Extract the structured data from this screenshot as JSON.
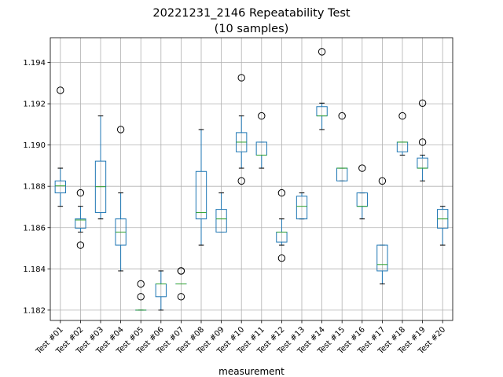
{
  "chart_data": {
    "type": "box",
    "title": [
      "20221231_2146 Repeatability Test",
      "(10 samples)"
    ],
    "xlabel": "measurement",
    "ylabel": "",
    "ylim": [
      1.1815,
      1.1952
    ],
    "yticks": [
      1.182,
      1.184,
      1.186,
      1.188,
      1.19,
      1.192,
      1.194
    ],
    "ytick_labels": [
      "1.182",
      "1.184",
      "1.186",
      "1.188",
      "1.190",
      "1.192",
      "1.194"
    ],
    "grid": true,
    "colors": {
      "box": "#1f77b4",
      "median": "#2ca02c",
      "grid": "#b0b0b0"
    },
    "categories": [
      "Test #01",
      "Test #02",
      "Test #03",
      "Test #04",
      "Test #05",
      "Test #06",
      "Test #07",
      "Test #08",
      "Test #09",
      "Test #10",
      "Test #11",
      "Test #12",
      "Test #13",
      "Test #14",
      "Test #15",
      "Test #16",
      "Test #17",
      "Test #18",
      "Test #19",
      "Test #20"
    ],
    "boxes": [
      {
        "whislo": 1.18703,
        "q1": 1.18768,
        "med": 1.18802,
        "q3": 1.18826,
        "whishi": 1.18888,
        "fliers": [
          1.19265
        ]
      },
      {
        "whislo": 1.18578,
        "q1": 1.18597,
        "med": 1.18637,
        "q3": 1.18642,
        "whishi": 1.18703,
        "fliers": [
          1.18768,
          1.18515
        ]
      },
      {
        "whislo": 1.18642,
        "q1": 1.18673,
        "med": 1.18798,
        "q3": 1.18922,
        "whishi": 1.19141,
        "fliers": []
      },
      {
        "whislo": 1.1839,
        "q1": 1.18515,
        "med": 1.18578,
        "q3": 1.18642,
        "whishi": 1.18768,
        "fliers": [
          1.19075
        ]
      },
      {
        "whislo": 1.182,
        "q1": 1.182,
        "med": 1.182,
        "q3": 1.182,
        "whishi": 1.182,
        "fliers": [
          1.18327,
          1.18265
        ]
      },
      {
        "whislo": 1.182,
        "q1": 1.18265,
        "med": 1.18327,
        "q3": 1.18327,
        "whishi": 1.1839,
        "fliers": []
      },
      {
        "whislo": 1.18327,
        "q1": 1.18327,
        "med": 1.18327,
        "q3": 1.18327,
        "whishi": 1.18327,
        "fliers": [
          1.1839,
          1.1839,
          1.18265
        ]
      },
      {
        "whislo": 1.18515,
        "q1": 1.18642,
        "med": 1.18673,
        "q3": 1.18872,
        "whishi": 1.19075,
        "fliers": []
      },
      {
        "whislo": 1.18578,
        "q1": 1.18578,
        "med": 1.18642,
        "q3": 1.18688,
        "whishi": 1.18768,
        "fliers": []
      },
      {
        "whislo": 1.18888,
        "q1": 1.18967,
        "med": 1.19014,
        "q3": 1.1906,
        "whishi": 1.19141,
        "fliers": [
          1.19326,
          1.18826
        ]
      },
      {
        "whislo": 1.18888,
        "q1": 1.18951,
        "med": 1.18951,
        "q3": 1.19014,
        "whishi": 1.19014,
        "fliers": [
          1.19141
        ]
      },
      {
        "whislo": 1.18515,
        "q1": 1.1853,
        "med": 1.18578,
        "q3": 1.18578,
        "whishi": 1.18642,
        "fliers": [
          1.18768,
          1.18452
        ]
      },
      {
        "whislo": 1.18642,
        "q1": 1.18642,
        "med": 1.18703,
        "q3": 1.18752,
        "whishi": 1.18768,
        "fliers": []
      },
      {
        "whislo": 1.19075,
        "q1": 1.19141,
        "med": 1.19141,
        "q3": 1.19186,
        "whishi": 1.19203,
        "fliers": [
          1.19452
        ]
      },
      {
        "whislo": 1.18826,
        "q1": 1.18826,
        "med": 1.18888,
        "q3": 1.18888,
        "whishi": 1.18888,
        "fliers": [
          1.19141
        ]
      },
      {
        "whislo": 1.18642,
        "q1": 1.18703,
        "med": 1.18703,
        "q3": 1.18768,
        "whishi": 1.18768,
        "fliers": [
          1.18888
        ]
      },
      {
        "whislo": 1.18327,
        "q1": 1.1839,
        "med": 1.18421,
        "q3": 1.18515,
        "whishi": 1.18515,
        "fliers": [
          1.18826
        ]
      },
      {
        "whislo": 1.18951,
        "q1": 1.18967,
        "med": 1.19014,
        "q3": 1.19014,
        "whishi": 1.19014,
        "fliers": [
          1.19141
        ]
      },
      {
        "whislo": 1.18826,
        "q1": 1.18888,
        "med": 1.18888,
        "q3": 1.18937,
        "whishi": 1.18951,
        "fliers": [
          1.19203,
          1.19014
        ]
      },
      {
        "whislo": 1.18515,
        "q1": 1.18597,
        "med": 1.18642,
        "q3": 1.18688,
        "whishi": 1.18703,
        "fliers": []
      }
    ]
  }
}
